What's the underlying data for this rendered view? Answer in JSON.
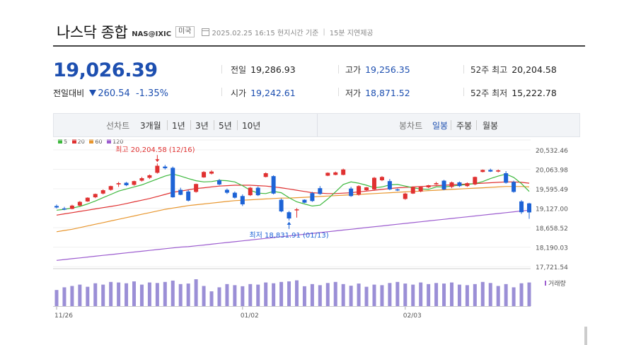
{
  "header": {
    "title": "나스닥 종합",
    "code": "NAS@IXIC",
    "market": "미국",
    "datetime": "2025.02.25 16:15 현지시간 기준",
    "delay": "15분 지연제공"
  },
  "quote": {
    "price": "19,026.39",
    "change_label": "전일대비",
    "change": "260.54",
    "change_pct": "-1.35%",
    "stats": [
      {
        "label": "전일",
        "value": "19,286.93",
        "tone": "normal"
      },
      {
        "label": "고가",
        "value": "19,256.35",
        "tone": "blue"
      },
      {
        "label": "52주 최고",
        "value": "20,204.58",
        "tone": "normal"
      },
      {
        "label": "시가",
        "value": "19,242.61",
        "tone": "blue"
      },
      {
        "label": "저가",
        "value": "18,871.52",
        "tone": "blue"
      },
      {
        "label": "52주 최저",
        "value": "15,222.78",
        "tone": "normal"
      }
    ]
  },
  "toolbar": {
    "line_chart": "선차트",
    "periods": [
      "3개월",
      "1년",
      "3년",
      "5년",
      "10년"
    ],
    "candle_chart": "봉차트",
    "candle_periods": [
      "일봉",
      "주봉",
      "월봉"
    ],
    "selected_candle": "일봉"
  },
  "colors": {
    "up": "#e03131",
    "down": "#1d63d6",
    "ma5": "#3db83d",
    "ma20": "#e03131",
    "ma60": "#e8962e",
    "ma120": "#9c5ccf",
    "volume": "#9b8fd6"
  },
  "chart_data": {
    "type": "candlestick",
    "legend": [
      "5",
      "20",
      "60",
      "120"
    ],
    "y_ticks": [
      "20,532.46",
      "20,063.98",
      "19,595.49",
      "19,127.00",
      "18,658.52",
      "18,190.03",
      "17,721.54"
    ],
    "ylim": [
      17721.54,
      20532.46
    ],
    "x_labels": [
      "11/26",
      "01/02",
      "02/03"
    ],
    "x_label_index": [
      0,
      24,
      45
    ],
    "volume_label": "거래량",
    "annotations": {
      "high": {
        "text": "최고 20,204.58 (12/16)",
        "index": 13,
        "value": 20204.58
      },
      "low": {
        "text": "최저 18,831.91 (01/13)",
        "index": 30,
        "value": 18831.91
      }
    },
    "candles": [
      {
        "o": 19180,
        "h": 19215,
        "l": 19120,
        "c": 19145
      },
      {
        "o": 19120,
        "h": 19160,
        "l": 19080,
        "c": 19110
      },
      {
        "o": 19110,
        "h": 19210,
        "l": 19100,
        "c": 19190
      },
      {
        "o": 19190,
        "h": 19300,
        "l": 19170,
        "c": 19280
      },
      {
        "o": 19290,
        "h": 19390,
        "l": 19280,
        "c": 19380
      },
      {
        "o": 19390,
        "h": 19480,
        "l": 19370,
        "c": 19470
      },
      {
        "o": 19480,
        "h": 19580,
        "l": 19460,
        "c": 19560
      },
      {
        "o": 19570,
        "h": 19670,
        "l": 19550,
        "c": 19660
      },
      {
        "o": 19700,
        "h": 19760,
        "l": 19640,
        "c": 19730
      },
      {
        "o": 19740,
        "h": 19760,
        "l": 19660,
        "c": 19680
      },
      {
        "o": 19690,
        "h": 19790,
        "l": 19670,
        "c": 19780
      },
      {
        "o": 19790,
        "h": 19880,
        "l": 19770,
        "c": 19850
      },
      {
        "o": 19860,
        "h": 19940,
        "l": 19830,
        "c": 19920
      },
      {
        "o": 19980,
        "h": 20204,
        "l": 19960,
        "c": 20150
      },
      {
        "o": 20130,
        "h": 20170,
        "l": 20060,
        "c": 20090
      },
      {
        "o": 20100,
        "h": 20130,
        "l": 19380,
        "c": 19390
      },
      {
        "o": 19570,
        "h": 19620,
        "l": 19440,
        "c": 19450
      },
      {
        "o": 19530,
        "h": 19570,
        "l": 19290,
        "c": 19310
      },
      {
        "o": 19520,
        "h": 19720,
        "l": 19500,
        "c": 19710
      },
      {
        "o": 19870,
        "h": 20020,
        "l": 19860,
        "c": 20000
      },
      {
        "o": 19960,
        "h": 20040,
        "l": 19940,
        "c": 20010
      },
      {
        "o": 19800,
        "h": 19830,
        "l": 19680,
        "c": 19700
      },
      {
        "o": 19570,
        "h": 19600,
        "l": 19470,
        "c": 19500
      },
      {
        "o": 19500,
        "h": 19530,
        "l": 19360,
        "c": 19380
      },
      {
        "o": 19420,
        "h": 19460,
        "l": 19180,
        "c": 19220
      },
      {
        "o": 19440,
        "h": 19640,
        "l": 19420,
        "c": 19620
      },
      {
        "o": 19620,
        "h": 19650,
        "l": 19420,
        "c": 19440
      },
      {
        "o": 19880,
        "h": 19990,
        "l": 19870,
        "c": 19970
      },
      {
        "o": 19900,
        "h": 19920,
        "l": 19460,
        "c": 19480
      },
      {
        "o": 19330,
        "h": 19360,
        "l": 19030,
        "c": 19050
      },
      {
        "o": 19030,
        "h": 19060,
        "l": 18831,
        "c": 18880
      },
      {
        "o": 19080,
        "h": 19130,
        "l": 18900,
        "c": 19100
      },
      {
        "o": 19330,
        "h": 19340,
        "l": 19250,
        "c": 19260
      },
      {
        "o": 19490,
        "h": 19520,
        "l": 19280,
        "c": 19300
      },
      {
        "o": 19610,
        "h": 19660,
        "l": 19450,
        "c": 19470
      },
      {
        "o": 19910,
        "h": 19990,
        "l": 19900,
        "c": 19980
      },
      {
        "o": 19930,
        "h": 20010,
        "l": 19920,
        "c": 19990
      },
      {
        "o": 19930,
        "h": 20080,
        "l": 19920,
        "c": 20060
      },
      {
        "o": 19600,
        "h": 19640,
        "l": 19400,
        "c": 19420
      },
      {
        "o": 19450,
        "h": 19680,
        "l": 19430,
        "c": 19660
      },
      {
        "o": 19560,
        "h": 19640,
        "l": 19540,
        "c": 19630
      },
      {
        "o": 19580,
        "h": 19880,
        "l": 19550,
        "c": 19860
      },
      {
        "o": 19800,
        "h": 19900,
        "l": 19780,
        "c": 19880
      },
      {
        "o": 19780,
        "h": 19830,
        "l": 19560,
        "c": 19580
      },
      {
        "o": 19580,
        "h": 19600,
        "l": 19540,
        "c": 19560
      },
      {
        "o": 19350,
        "h": 19500,
        "l": 19330,
        "c": 19480
      },
      {
        "o": 19480,
        "h": 19650,
        "l": 19470,
        "c": 19630
      },
      {
        "o": 19530,
        "h": 19650,
        "l": 19510,
        "c": 19640
      },
      {
        "o": 19630,
        "h": 19690,
        "l": 19610,
        "c": 19680
      },
      {
        "o": 19700,
        "h": 19760,
        "l": 19690,
        "c": 19730
      },
      {
        "o": 19790,
        "h": 19810,
        "l": 19560,
        "c": 19580
      },
      {
        "o": 19640,
        "h": 19770,
        "l": 19610,
        "c": 19750
      },
      {
        "o": 19750,
        "h": 19770,
        "l": 19640,
        "c": 19660
      },
      {
        "o": 19660,
        "h": 19750,
        "l": 19640,
        "c": 19730
      },
      {
        "o": 19700,
        "h": 19890,
        "l": 19680,
        "c": 19880
      },
      {
        "o": 20000,
        "h": 20060,
        "l": 19990,
        "c": 20050
      },
      {
        "o": 20050,
        "h": 20080,
        "l": 20000,
        "c": 20010
      },
      {
        "o": 20010,
        "h": 20060,
        "l": 19990,
        "c": 20040
      },
      {
        "o": 19970,
        "h": 20020,
        "l": 19720,
        "c": 19740
      },
      {
        "o": 19760,
        "h": 19790,
        "l": 19500,
        "c": 19520
      },
      {
        "o": 19290,
        "h": 19320,
        "l": 18990,
        "c": 19030
      },
      {
        "o": 19243,
        "h": 19256,
        "l": 18872,
        "c": 19026
      }
    ],
    "ma5": [
      19080,
      19100,
      19130,
      19170,
      19230,
      19300,
      19380,
      19460,
      19540,
      19590,
      19640,
      19690,
      19760,
      19830,
      19900,
      19950,
      19900,
      19840,
      19790,
      19760,
      19770,
      19800,
      19790,
      19760,
      19670,
      19560,
      19490,
      19480,
      19530,
      19500,
      19380,
      19280,
      19230,
      19180,
      19200,
      19350,
      19520,
      19700,
      19760,
      19730,
      19680,
      19620,
      19640,
      19690,
      19700,
      19660,
      19620,
      19590,
      19580,
      19640,
      19640,
      19660,
      19680,
      19700,
      19720,
      19770,
      19840,
      19900,
      19950,
      19870,
      19720,
      19530
    ],
    "ma20": [
      18960,
      18990,
      19020,
      19050,
      19080,
      19110,
      19140,
      19170,
      19200,
      19240,
      19280,
      19320,
      19360,
      19410,
      19460,
      19510,
      19540,
      19570,
      19600,
      19620,
      19640,
      19660,
      19670,
      19680,
      19680,
      19680,
      19670,
      19660,
      19640,
      19620,
      19590,
      19560,
      19530,
      19500,
      19490,
      19480,
      19480,
      19490,
      19500,
      19520,
      19540,
      19560,
      19580,
      19600,
      19620,
      19630,
      19640,
      19650,
      19660,
      19670,
      19680,
      19690,
      19700,
      19710,
      19720,
      19730,
      19740,
      19750,
      19760,
      19760,
      19750,
      19730
    ],
    "ma60": [
      18560,
      18590,
      18620,
      18660,
      18700,
      18740,
      18780,
      18820,
      18860,
      18900,
      18940,
      18980,
      19020,
      19060,
      19100,
      19130,
      19160,
      19190,
      19210,
      19230,
      19250,
      19270,
      19290,
      19310,
      19320,
      19330,
      19340,
      19350,
      19360,
      19370,
      19370,
      19380,
      19390,
      19400,
      19410,
      19420,
      19430,
      19440,
      19450,
      19460,
      19470,
      19480,
      19490,
      19500,
      19510,
      19520,
      19530,
      19540,
      19550,
      19560,
      19570,
      19580,
      19590,
      19600,
      19610,
      19620,
      19630,
      19640,
      19650,
      19650,
      19650,
      19640
    ],
    "ma120": [
      17870,
      17890,
      17910,
      17930,
      17950,
      17970,
      17990,
      18010,
      18030,
      18050,
      18070,
      18090,
      18110,
      18130,
      18150,
      18170,
      18190,
      18200,
      18220,
      18240,
      18260,
      18280,
      18300,
      18320,
      18340,
      18360,
      18380,
      18400,
      18420,
      18440,
      18460,
      18480,
      18500,
      18520,
      18540,
      18560,
      18580,
      18600,
      18620,
      18640,
      18660,
      18680,
      18700,
      18720,
      18740,
      18760,
      18780,
      18800,
      18820,
      18840,
      18860,
      18880,
      18900,
      18920,
      18940,
      18960,
      18980,
      19000,
      19020,
      19040,
      19060,
      19080
    ],
    "volume": [
      0.6,
      0.7,
      0.75,
      0.8,
      0.72,
      0.85,
      0.8,
      0.9,
      0.88,
      0.85,
      0.92,
      0.8,
      0.88,
      0.86,
      0.9,
      0.95,
      0.82,
      0.84,
      1.0,
      0.75,
      0.55,
      0.7,
      0.82,
      0.78,
      0.74,
      0.82,
      0.8,
      0.88,
      0.85,
      0.9,
      0.92,
      0.96,
      0.74,
      0.82,
      0.78,
      0.86,
      0.9,
      0.82,
      0.76,
      0.84,
      0.72,
      0.8,
      0.78,
      0.86,
      0.9,
      0.84,
      0.8,
      0.88,
      0.82,
      0.86,
      0.84,
      0.88,
      0.8,
      0.78,
      0.82,
      0.9,
      0.86,
      0.75,
      0.82,
      0.7,
      0.85,
      0.88
    ]
  }
}
